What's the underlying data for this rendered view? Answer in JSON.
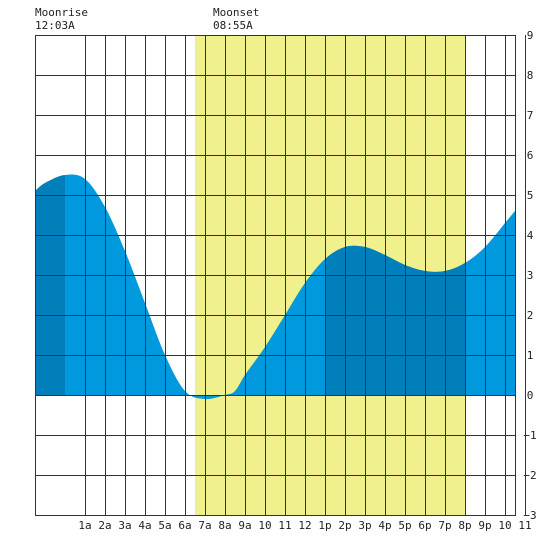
{
  "chart_data": {
    "type": "area",
    "title": "",
    "xlabel": "",
    "ylabel": "",
    "x_hours_range": [
      -1.5,
      22.5
    ],
    "ylim": [
      -3,
      9
    ],
    "y_ticks": [
      -3,
      -2,
      -1,
      0,
      1,
      2,
      3,
      4,
      5,
      6,
      7,
      8,
      9
    ],
    "y_tick_labels": [
      "−3",
      "−2",
      "−1",
      "0",
      "1",
      "2",
      "3",
      "4",
      "5",
      "6",
      "7",
      "8",
      "9"
    ],
    "x_tick_hours": [
      1,
      2,
      3,
      4,
      5,
      6,
      7,
      8,
      9,
      10,
      11,
      12,
      13,
      14,
      15,
      16,
      17,
      18,
      19,
      20,
      21,
      22,
      23
    ],
    "x_tick_labels": [
      "1a",
      "2a",
      "3a",
      "4a",
      "5a",
      "6a",
      "7a",
      "8a",
      "9a",
      "10",
      "11",
      "12",
      "1p",
      "2p",
      "3p",
      "4p",
      "5p",
      "6p",
      "7p",
      "8p",
      "9p",
      "10",
      "11"
    ],
    "grid": true,
    "annotations": [
      {
        "title": "Moonrise",
        "time": "12:03A"
      },
      {
        "title": "Moonset",
        "time": "08:55A"
      }
    ],
    "moon_up_shading": {
      "start_hour": 6.5,
      "end_hour": 20.0,
      "color": "#f0f08c"
    },
    "tide_curve": {
      "x": [
        -1.5,
        -1,
        0,
        1,
        2,
        3,
        4,
        5,
        6,
        7,
        8,
        8.5,
        9,
        10,
        11,
        12,
        13,
        14,
        15,
        16,
        17,
        18,
        19,
        20,
        21,
        22,
        22.5
      ],
      "y": [
        5.1,
        5.3,
        5.5,
        5.4,
        4.7,
        3.6,
        2.3,
        1.0,
        0.1,
        -0.1,
        0.0,
        0.1,
        0.5,
        1.2,
        2.0,
        2.8,
        3.4,
        3.7,
        3.7,
        3.5,
        3.25,
        3.1,
        3.1,
        3.3,
        3.7,
        4.3,
        4.6
      ]
    },
    "dark_bands_hours": [
      [
        -1.5,
        0.0
      ],
      [
        13.0,
        20.0
      ]
    ],
    "colors": {
      "tide_light": "#0099dd",
      "tide_dark": "#007fbb",
      "grid": "#333333",
      "background": "#ffffff"
    }
  }
}
